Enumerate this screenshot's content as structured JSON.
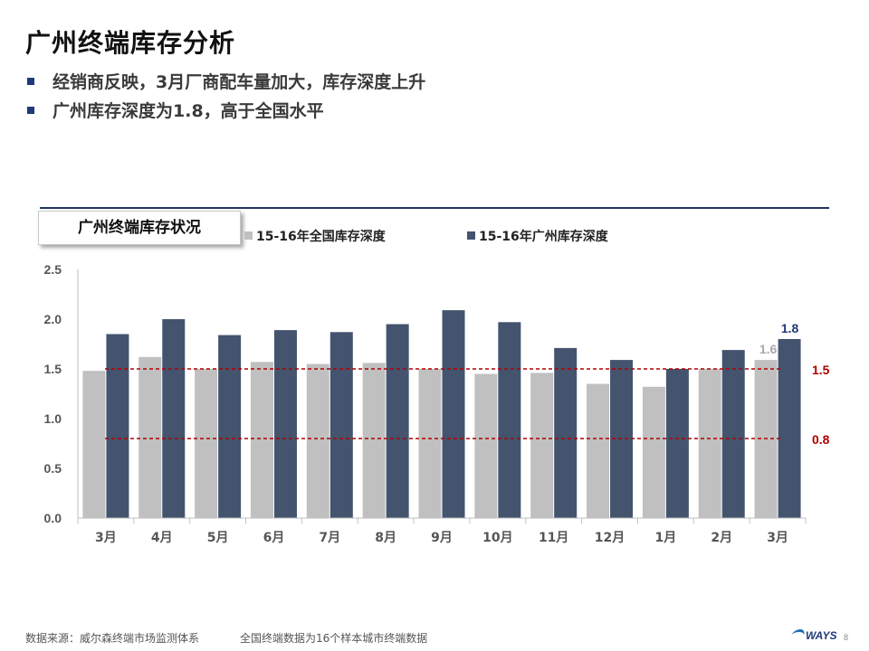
{
  "slide": {
    "title": "广州终端库存分析",
    "bullets": [
      "经销商反映，3月厂商配车量加大，库存深度上升",
      "广州库存深度为1.8，高于全国水平"
    ]
  },
  "chart_box_label": "广州终端库存状况",
  "legend": [
    {
      "label": "15-16年全国库存深度",
      "color": "#c0c0c0"
    },
    {
      "label": "15-16年广州库存深度",
      "color": "#44546e"
    }
  ],
  "footer": {
    "source": "数据来源：威尔森终端市场监测体系",
    "note": "全国终端数据为16个样本城市终端数据",
    "logo_text": "WAYS",
    "page_number": "8"
  },
  "chart_data": {
    "type": "bar",
    "categories": [
      "3月",
      "4月",
      "5月",
      "6月",
      "7月",
      "8月",
      "9月",
      "10月",
      "11月",
      "12月",
      "1月",
      "2月",
      "3月"
    ],
    "series": [
      {
        "name": "15-16年全国库存深度",
        "color": "#c0c0c0",
        "values": [
          1.48,
          1.62,
          1.5,
          1.57,
          1.55,
          1.56,
          1.5,
          1.45,
          1.46,
          1.35,
          1.32,
          1.5,
          1.59
        ]
      },
      {
        "name": "15-16年广州库存深度",
        "color": "#44546e",
        "values": [
          1.85,
          2.0,
          1.84,
          1.89,
          1.87,
          1.95,
          2.09,
          1.97,
          1.71,
          1.59,
          1.5,
          1.69,
          1.8
        ]
      }
    ],
    "ylim": [
      0,
      2.5
    ],
    "yticks": [
      "0.0",
      "0.5",
      "1.0",
      "1.5",
      "2.0",
      "2.5"
    ],
    "ytick_values": [
      0,
      0.5,
      1.0,
      1.5,
      2.0,
      2.5
    ],
    "reference_lines": [
      {
        "value": 1.5,
        "label": "1.5",
        "color": "#b00000"
      },
      {
        "value": 0.8,
        "label": "0.8",
        "color": "#b00000"
      }
    ],
    "data_labels": [
      {
        "series": 0,
        "index": 12,
        "text": "1.6",
        "color": "#a8a8a8"
      },
      {
        "series": 1,
        "index": 12,
        "text": "1.8",
        "color": "#1f3a7a"
      }
    ],
    "grid": false
  }
}
